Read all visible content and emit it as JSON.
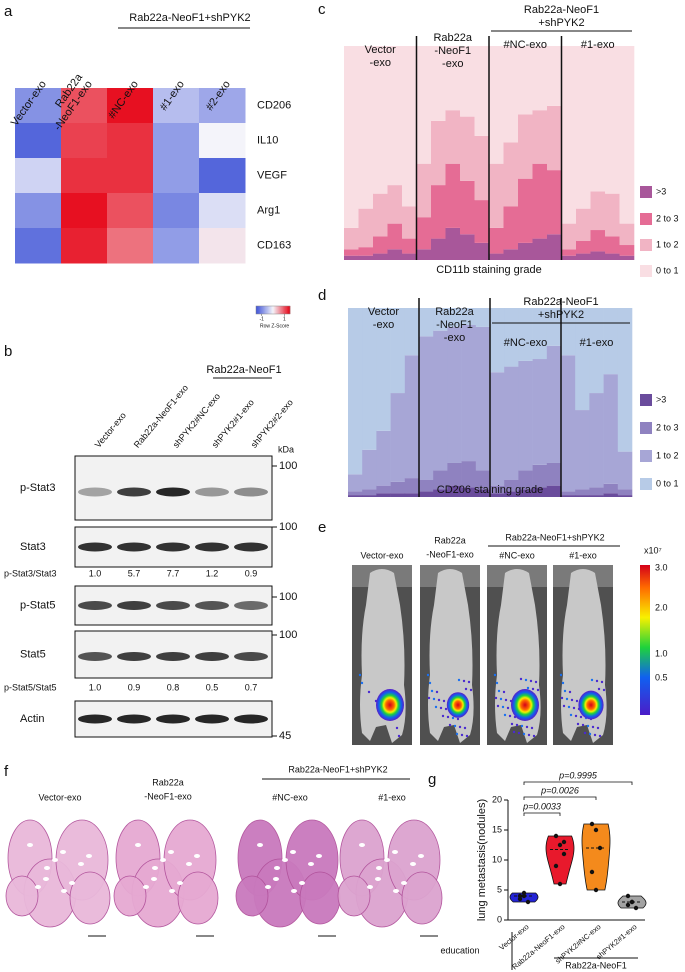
{
  "chart_data": [
    {
      "type": "heatmap",
      "label": "a",
      "header": "Rab22a-NeoF1+shPYK2",
      "columns": [
        [
          "Vector-exo"
        ],
        [
          "Rab22a",
          "-NeoF1-exo"
        ],
        [
          "#NC-exo"
        ],
        [
          "#1-exo"
        ],
        [
          "#2-exo"
        ]
      ],
      "rows": [
        "CD206",
        "IL10",
        "VEGF",
        "Arg1",
        "CD163"
      ],
      "values": [
        [
          -0.9,
          1.0,
          1.4,
          -0.5,
          -0.7
        ],
        [
          -1.3,
          1.1,
          1.2,
          -0.8,
          0.0
        ],
        [
          -0.3,
          1.2,
          1.2,
          -0.8,
          -1.3
        ],
        [
          -0.9,
          1.4,
          1.0,
          -1.0,
          -0.2
        ],
        [
          -1.2,
          1.3,
          0.8,
          -0.8,
          0.1
        ]
      ],
      "zlim": [
        -1.5,
        1.5
      ],
      "colors": [
        "#3b50d6",
        "#f4f4fa",
        "#e60012"
      ],
      "colorbar_ticks": [
        -1,
        1
      ],
      "colorbar_label": "Row Z-Score"
    },
    {
      "type": "stacked_bar",
      "label": "c",
      "groups": [
        [
          "Vector",
          "-exo"
        ],
        [
          "Rab22a",
          "-NeoF1",
          "-exo"
        ],
        [
          "#NC-exo"
        ],
        [
          "#1-exo"
        ]
      ],
      "header": [
        "Rab22a-NeoF1",
        "+shPYK2"
      ],
      "xlabel": "CD11b staining grade",
      "categories": [
        null,
        null,
        null,
        null,
        null,
        null,
        null,
        null,
        null,
        null,
        null,
        null,
        null,
        null,
        null,
        null,
        null,
        null,
        null,
        null
      ],
      "series": [
        {
          "name": ">3",
          "color": "#a8579a",
          "values": [
            2,
            2,
            3,
            5,
            3,
            5,
            10,
            15,
            12,
            8,
            3,
            5,
            8,
            10,
            12,
            2,
            3,
            4,
            3,
            2
          ]
        },
        {
          "name": "2 to 3",
          "color": "#e56c95",
          "values": [
            3,
            4,
            8,
            12,
            7,
            15,
            25,
            30,
            25,
            20,
            12,
            20,
            30,
            35,
            30,
            3,
            6,
            10,
            8,
            5
          ]
        },
        {
          "name": "1 to 2",
          "color": "#f1b4c4",
          "values": [
            10,
            18,
            20,
            18,
            15,
            25,
            30,
            25,
            30,
            30,
            30,
            30,
            30,
            25,
            30,
            12,
            15,
            18,
            20,
            10
          ]
        },
        {
          "name": "0 to 1",
          "color": "#f9dee3",
          "values": [
            85,
            76,
            69,
            65,
            75,
            55,
            35,
            30,
            33,
            42,
            55,
            45,
            32,
            30,
            28,
            83,
            76,
            68,
            69,
            83
          ]
        }
      ]
    },
    {
      "type": "stacked_bar",
      "label": "d",
      "groups": [
        [
          "Vector",
          "-exo"
        ],
        [
          "Rab22a",
          "-NeoF1",
          "-exo"
        ],
        [
          "#NC-exo"
        ],
        [
          "#1-exo"
        ]
      ],
      "header": [
        "Rab22a-NeoF1",
        "+shPYK2"
      ],
      "xlabel": "CD206 staining grade",
      "categories": [
        null,
        null,
        null,
        null,
        null,
        null,
        null,
        null,
        null,
        null,
        null,
        null,
        null,
        null,
        null,
        null,
        null,
        null,
        null,
        null
      ],
      "series": [
        {
          "name": ">3",
          "color": "#6a4c9c",
          "values": [
            1,
            1,
            2,
            2,
            2,
            3,
            4,
            6,
            5,
            4,
            2,
            3,
            4,
            5,
            6,
            1,
            1,
            1,
            2,
            1
          ]
        },
        {
          "name": "2 to 3",
          "color": "#8f82c0",
          "values": [
            2,
            3,
            4,
            6,
            8,
            6,
            10,
            12,
            14,
            10,
            4,
            6,
            10,
            12,
            12,
            2,
            3,
            4,
            5,
            3
          ]
        },
        {
          "name": "1 to 2",
          "color": "#a7a6d6",
          "values": [
            9,
            21,
            29,
            47,
            65,
            76,
            74,
            72,
            72,
            76,
            60,
            60,
            58,
            56,
            62,
            72,
            42,
            50,
            58,
            20
          ]
        },
        {
          "name": "0 to 1",
          "color": "#b7cbe7",
          "values": [
            88,
            75,
            65,
            45,
            25,
            15,
            12,
            10,
            9,
            10,
            34,
            31,
            28,
            27,
            20,
            25,
            54,
            45,
            35,
            76
          ]
        }
      ]
    },
    {
      "type": "violin",
      "label": "g",
      "ylabel": "lung metastasis(nodules)",
      "categories": [
        "Vector-exo",
        "Rab22a-NeoF1-exo",
        "shPYK2#NC-exo",
        "shPYK2#1-exo"
      ],
      "colors": [
        "#2424d6",
        "#e8192c",
        "#f48a1c",
        "#a3a3a3"
      ],
      "values": [
        [
          4,
          4.5,
          3,
          3.5,
          4
        ],
        [
          14,
          12.5,
          11,
          9,
          6,
          13
        ],
        [
          16,
          15,
          12,
          8,
          5
        ],
        [
          4,
          3,
          2,
          2.5,
          3
        ]
      ],
      "ylim": [
        0,
        20
      ],
      "yticks": [
        0,
        5,
        10,
        15,
        20
      ],
      "comparisons": [
        "p=0.0033",
        "p=0.0026",
        "p=0.9995"
      ],
      "xlabel": "education",
      "group_label": "Rab22a-NeoF1"
    }
  ],
  "blot": {
    "label": "b",
    "header": "Rab22a-NeoF1",
    "lanes": [
      "Vector-exo",
      "Rab22a-NeoF1-exo",
      "shPYK2#NC-exo",
      "shPYK2#1-exo",
      "shPYK2#2-exo"
    ],
    "unit": "kDa",
    "rows": [
      {
        "name": "p-Stat3",
        "marker": "100"
      },
      {
        "name": "Stat3",
        "marker": "100"
      },
      {
        "name": "p-Stat5",
        "marker": "100"
      },
      {
        "name": "Stat5",
        "marker": "100"
      },
      {
        "name": "Actin",
        "marker": "45"
      }
    ],
    "ratios": [
      {
        "name": "p-Stat3/Stat3",
        "values": [
          "1.0",
          "5.7",
          "7.7",
          "1.2",
          "0.9"
        ]
      },
      {
        "name": "p-Stat5/Stat5",
        "values": [
          "1.0",
          "0.9",
          "0.8",
          "0.5",
          "0.7"
        ]
      }
    ]
  },
  "imaging": {
    "label": "e",
    "columns": [
      [
        "Vector-exo"
      ],
      [
        "Rab22a",
        "-NeoF1-exo"
      ],
      [
        "#NC-exo"
      ],
      [
        "#1-exo"
      ]
    ],
    "header": "Rab22a-NeoF1+shPYK2",
    "scale_unit": "x10⁷",
    "scale_ticks": [
      "3.0",
      "2.0",
      "1.0",
      "0.5"
    ]
  },
  "histology": {
    "label": "f",
    "columns": [
      [
        "Vector-exo"
      ],
      [
        "Rab22a",
        "-NeoF1-exo"
      ],
      [
        "#NC-exo"
      ],
      [
        "#1-exo"
      ]
    ],
    "header": "Rab22a-NeoF1+shPYK2"
  }
}
